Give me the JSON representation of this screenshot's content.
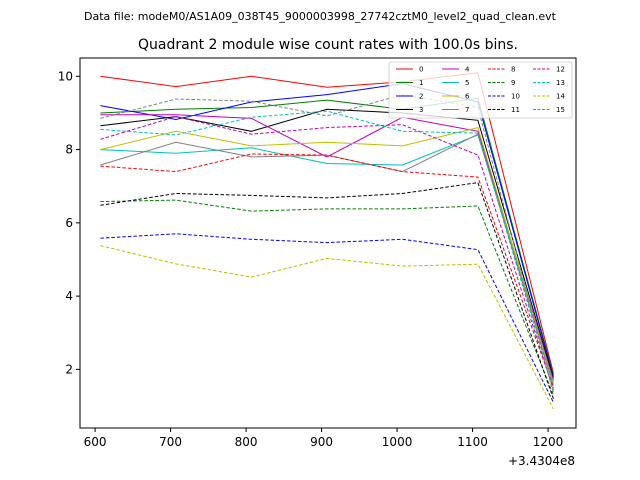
{
  "figure": {
    "suptitle": "Data file: modeM0/AS1A09_038T45_9000003998_27742cztM0_level2_quad_clean.evt"
  },
  "chart_data": {
    "type": "line",
    "title": "Quadrant 2 module wise count rates with 100.0s bins.",
    "xlabel": "",
    "ylabel": "",
    "x_offset_label": "+3.4304e8",
    "x": [
      607,
      707,
      807,
      907,
      1007,
      1107,
      1207
    ],
    "xlim": [
      580,
      1237
    ],
    "ylim": [
      0.4,
      10.5
    ],
    "xticks": [
      600,
      700,
      800,
      900,
      1000,
      1100,
      1200
    ],
    "yticks": [
      2,
      4,
      6,
      8,
      10
    ],
    "legend": {
      "placement": "top-right",
      "columns": 4
    },
    "series": [
      {
        "name": "0",
        "color": "#ff0000",
        "dash": "solid",
        "values": [
          10.0,
          9.72,
          10.0,
          9.7,
          9.85,
          10.1,
          1.9
        ]
      },
      {
        "name": "1",
        "color": "#008000",
        "dash": "solid",
        "values": [
          9.0,
          9.1,
          9.15,
          9.35,
          9.1,
          9.4,
          1.85
        ]
      },
      {
        "name": "2",
        "color": "#0000ff",
        "dash": "solid",
        "values": [
          9.2,
          8.82,
          9.3,
          9.5,
          9.8,
          9.3,
          1.8
        ]
      },
      {
        "name": "3",
        "color": "#000000",
        "dash": "solid",
        "values": [
          8.65,
          8.9,
          8.5,
          9.1,
          9.0,
          8.8,
          1.75
        ]
      },
      {
        "name": "4",
        "color": "#bf00bf",
        "dash": "solid",
        "values": [
          8.95,
          8.95,
          8.85,
          7.8,
          8.88,
          8.5,
          1.7
        ]
      },
      {
        "name": "5",
        "color": "#00bfbf",
        "dash": "solid",
        "values": [
          8.0,
          7.9,
          8.05,
          7.62,
          7.58,
          8.4,
          1.65
        ]
      },
      {
        "name": "6",
        "color": "#bfbf00",
        "dash": "solid",
        "values": [
          8.0,
          8.5,
          8.1,
          8.2,
          8.1,
          8.6,
          1.6
        ]
      },
      {
        "name": "7",
        "color": "#808080",
        "dash": "solid",
        "values": [
          7.58,
          8.2,
          7.8,
          7.85,
          7.4,
          8.42,
          1.55
        ]
      },
      {
        "name": "8",
        "color": "#ff0000",
        "dash": "dashed",
        "values": [
          7.55,
          7.4,
          7.88,
          7.85,
          7.4,
          7.25,
          1.5
        ]
      },
      {
        "name": "9",
        "color": "#008000",
        "dash": "dashed",
        "values": [
          6.58,
          6.62,
          6.32,
          6.38,
          6.38,
          6.46,
          1.3
        ]
      },
      {
        "name": "10",
        "color": "#0000ff",
        "dash": "dashed",
        "values": [
          5.58,
          5.7,
          5.55,
          5.46,
          5.55,
          5.27,
          1.1
        ]
      },
      {
        "name": "11",
        "color": "#000000",
        "dash": "dashed",
        "values": [
          6.48,
          6.8,
          6.75,
          6.68,
          6.8,
          7.1,
          1.2
        ]
      },
      {
        "name": "12",
        "color": "#bf00bf",
        "dash": "dashed",
        "values": [
          8.28,
          8.9,
          8.42,
          8.6,
          8.68,
          7.85,
          1.45
        ]
      },
      {
        "name": "13",
        "color": "#00bfbf",
        "dash": "dashed",
        "values": [
          8.55,
          8.4,
          8.88,
          9.05,
          8.5,
          8.45,
          1.4
        ]
      },
      {
        "name": "14",
        "color": "#bfbf00",
        "dash": "dashed",
        "values": [
          5.38,
          4.88,
          4.52,
          5.03,
          4.82,
          4.87,
          0.92
        ]
      },
      {
        "name": "15",
        "color": "#808080",
        "dash": "dashed",
        "values": [
          8.85,
          9.38,
          9.32,
          8.92,
          9.5,
          9.15,
          1.35
        ]
      }
    ]
  }
}
